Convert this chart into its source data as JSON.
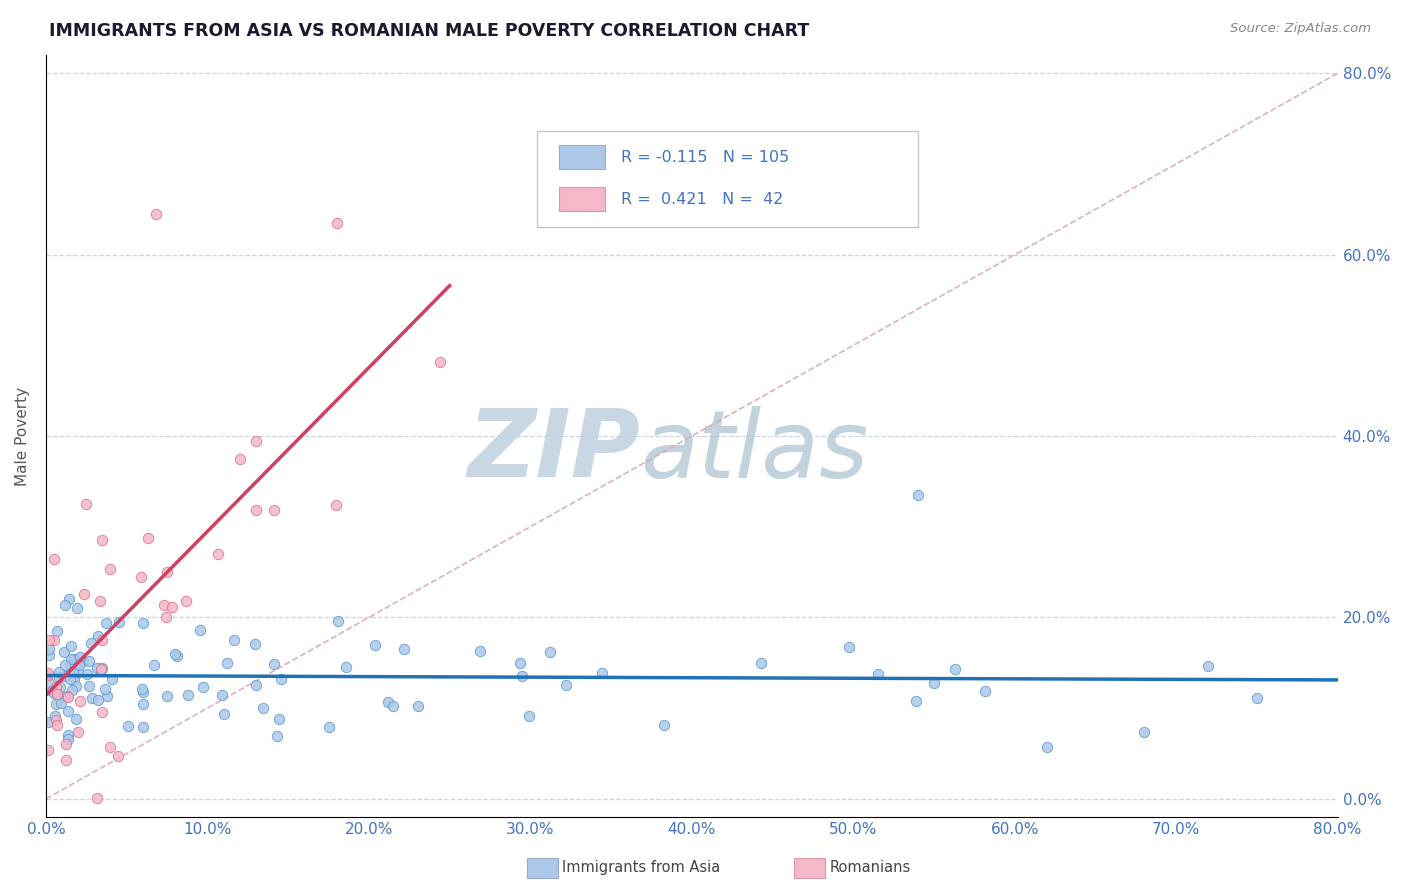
{
  "title": "IMMIGRANTS FROM ASIA VS ROMANIAN MALE POVERTY CORRELATION CHART",
  "source_text": "Source: ZipAtlas.com",
  "ylabel": "Male Poverty",
  "xlim": [
    0.0,
    0.8
  ],
  "ylim": [
    -0.02,
    0.82
  ],
  "blue_color": "#adc8e8",
  "pink_color": "#f4b8c8",
  "blue_edge_color": "#5b9bd5",
  "pink_edge_color": "#e07090",
  "blue_line_color": "#2171b5",
  "pink_line_color": "#d04060",
  "diag_line_color": "#d8a8b8",
  "grid_color": "#c8d4e8",
  "legend_R1": "-0.115",
  "legend_N1": "105",
  "legend_R2": "0.421",
  "legend_N2": "42",
  "legend_text_color": "#4472c4",
  "watermark_zip": "ZIP",
  "watermark_atlas": "atlas",
  "watermark_color": "#c8d8e8",
  "axis_label_color": "#4472c4",
  "title_color": "#1a1a2e",
  "source_color": "#888888",
  "marker_size": 55
}
